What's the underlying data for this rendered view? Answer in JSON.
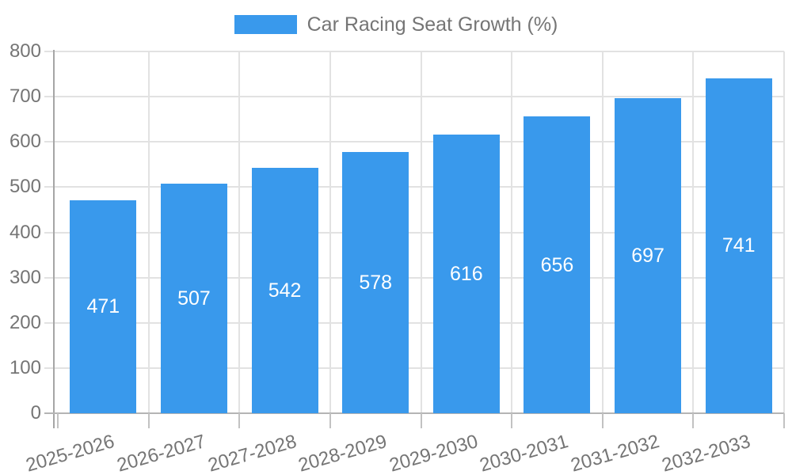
{
  "legend": {
    "label": "Car Racing Seat Growth (%)"
  },
  "colors": {
    "bar": "#3999EC",
    "grid": "#e2e2e2",
    "axis_line": "#a6a6a6",
    "baseline": "#b4b4b4",
    "tick": "#c2c2c2",
    "text": "#757575",
    "value_label": "#ffffff",
    "background": "#ffffff"
  },
  "chart_data": {
    "type": "bar",
    "title": "Car Racing Seat Growth (%)",
    "categories": [
      "2025-2026",
      "2026-2027",
      "2027-2028",
      "2028-2029",
      "2029-2030",
      "2030-2031",
      "2031-2032",
      "2032-2033"
    ],
    "series": [
      {
        "name": "Car Racing Seat Growth (%)",
        "values": [
          471,
          507,
          542,
          578,
          616,
          656,
          697,
          741
        ]
      }
    ],
    "value_labels_shown": true,
    "xlabel": "",
    "ylabel": "",
    "ylim": [
      0,
      800
    ],
    "y_ticks": [
      0,
      100,
      200,
      300,
      400,
      500,
      600,
      700,
      800
    ],
    "grid": true,
    "legend_position": "top",
    "x_tick_label_rotation_deg": -16
  }
}
